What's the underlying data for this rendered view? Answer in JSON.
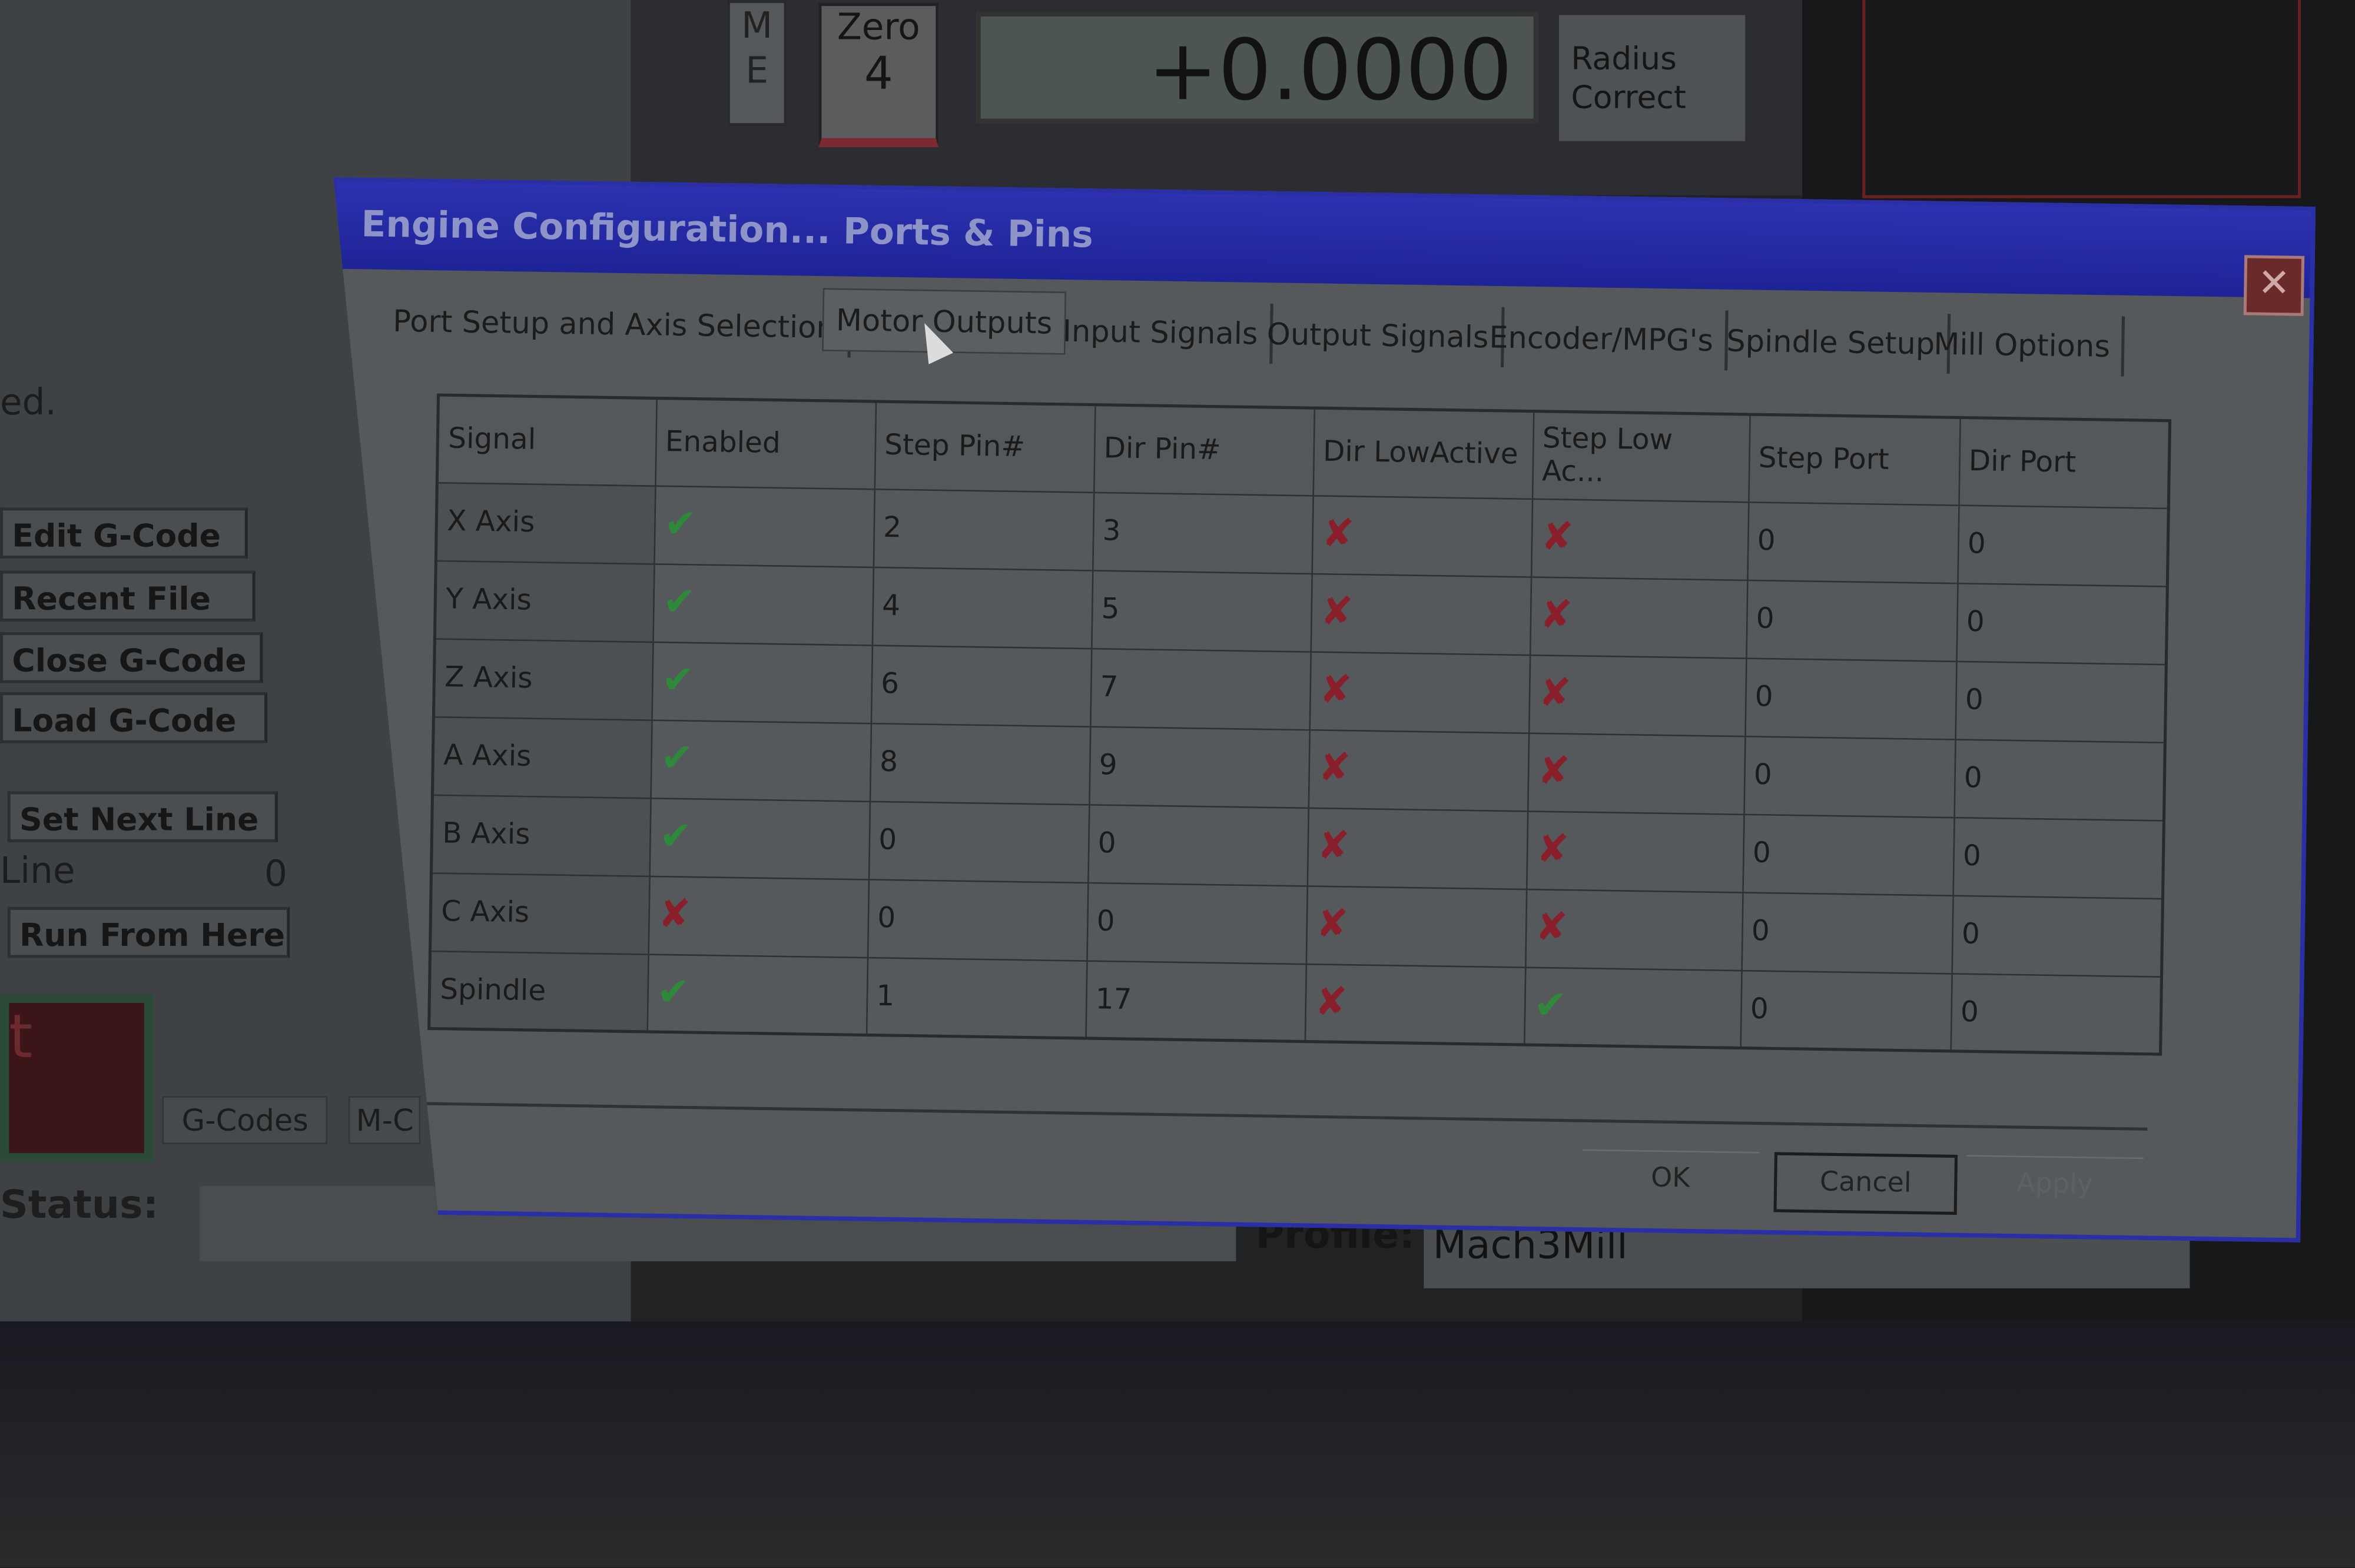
{
  "background_app": {
    "me_button": "M E",
    "zero_button": {
      "label": "Zero",
      "axis": "4"
    },
    "dro_value": "+0.0000",
    "radius_correct": "Radius Correct",
    "left_partial_text": "ed.",
    "buttons": [
      "Edit G-Code",
      "Recent File",
      "Close G-Code",
      "Load G-Code",
      "Set Next Line",
      "Run From Here"
    ],
    "line_label": "Line",
    "line_value": "0",
    "red_button_partial": "t",
    "tabs": [
      "G-Codes",
      "M-C"
    ],
    "status_label": "Status:",
    "profile_label": "Profile:",
    "profile_value": "Mach3Mill"
  },
  "dialog": {
    "title": "Engine Configuration... Ports & Pins",
    "close_icon": "close-x-icon",
    "tabs": [
      {
        "label": "Port Setup and Axis Selection",
        "active": false
      },
      {
        "label": "Motor Outputs",
        "active": true
      },
      {
        "label": "Input Signals",
        "active": false
      },
      {
        "label": "Output Signals",
        "active": false
      },
      {
        "label": "Encoder/MPG's",
        "active": false
      },
      {
        "label": "Spindle Setup",
        "active": false
      },
      {
        "label": "Mill Options",
        "active": false
      }
    ],
    "columns": [
      "Signal",
      "Enabled",
      "Step Pin#",
      "Dir Pin#",
      "Dir LowActive",
      "Step Low Ac...",
      "Step Port",
      "Dir Port"
    ],
    "rows": [
      {
        "signal": "X Axis",
        "enabled": true,
        "step_pin": "2",
        "dir_pin": "3",
        "dir_low": false,
        "step_low": false,
        "step_port": "0",
        "dir_port": "0"
      },
      {
        "signal": "Y Axis",
        "enabled": true,
        "step_pin": "4",
        "dir_pin": "5",
        "dir_low": false,
        "step_low": false,
        "step_port": "0",
        "dir_port": "0"
      },
      {
        "signal": "Z Axis",
        "enabled": true,
        "step_pin": "6",
        "dir_pin": "7",
        "dir_low": false,
        "step_low": false,
        "step_port": "0",
        "dir_port": "0"
      },
      {
        "signal": "A Axis",
        "enabled": true,
        "step_pin": "8",
        "dir_pin": "9",
        "dir_low": false,
        "step_low": false,
        "step_port": "0",
        "dir_port": "0"
      },
      {
        "signal": "B Axis",
        "enabled": true,
        "step_pin": "0",
        "dir_pin": "0",
        "dir_low": false,
        "step_low": false,
        "step_port": "0",
        "dir_port": "0"
      },
      {
        "signal": "C Axis",
        "enabled": false,
        "step_pin": "0",
        "dir_pin": "0",
        "dir_low": false,
        "step_low": false,
        "step_port": "0",
        "dir_port": "0"
      },
      {
        "signal": "Spindle",
        "enabled": true,
        "step_pin": "1",
        "dir_pin": "17",
        "dir_low": false,
        "step_low": true,
        "step_port": "0",
        "dir_port": "0"
      }
    ],
    "ok_label": "OK",
    "cancel_label": "Cancel",
    "apply_label": "Apply",
    "colors": {
      "check": "#2e8a3a",
      "cross": "#8a1f2c",
      "titlebar": "#2c32b0"
    }
  }
}
